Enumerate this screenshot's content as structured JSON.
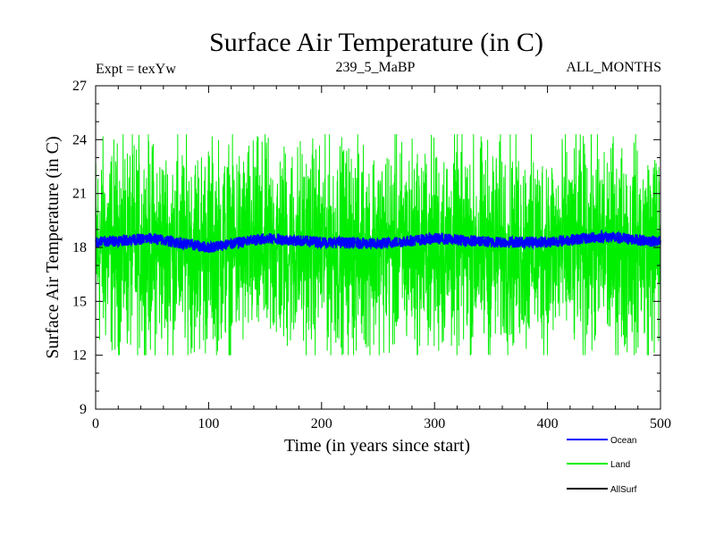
{
  "chart_data": {
    "type": "line",
    "title": "Surface Air Temperature (in C)",
    "subtitle_left": "Expt = texYw",
    "subtitle_center": "239_5_MaBP",
    "subtitle_right": "ALL_MONTHS",
    "xlabel": "Time (in years since start)",
    "ylabel": "Surface Air Temperature (in C)",
    "xlim": [
      0,
      500
    ],
    "ylim": [
      9,
      27
    ],
    "xticks": [
      0,
      100,
      200,
      300,
      400,
      500
    ],
    "yticks": [
      9,
      12,
      15,
      18,
      21,
      24,
      27
    ],
    "grid": false,
    "legend_position": "bottom-right",
    "series": [
      {
        "name": "Ocean",
        "color": "#0000ff",
        "mean": 18.3,
        "spread": [
          17.6,
          19.0
        ],
        "description_values": {
          "x": [
            0,
            50,
            100,
            150,
            200,
            250,
            300,
            350,
            400,
            450,
            500
          ],
          "y": [
            18.3,
            18.5,
            18.0,
            18.5,
            18.3,
            18.2,
            18.5,
            18.3,
            18.3,
            18.6,
            18.3
          ]
        }
      },
      {
        "name": "Land",
        "color": "#00ee00",
        "mean": 18.0,
        "spread": [
          12.0,
          24.3
        ],
        "description_values": {
          "x": [
            0,
            50,
            100,
            150,
            200,
            250,
            300,
            350,
            400,
            450,
            500
          ],
          "y": [
            18.0,
            18.0,
            18.0,
            18.0,
            18.0,
            18.0,
            18.0,
            18.0,
            18.0,
            18.0,
            18.0
          ]
        }
      },
      {
        "name": "AllSurf",
        "color": "#000000",
        "mean": 18.2,
        "spread": [
          18.2,
          18.2
        ],
        "description_values": {
          "x": [],
          "y": []
        }
      }
    ]
  }
}
